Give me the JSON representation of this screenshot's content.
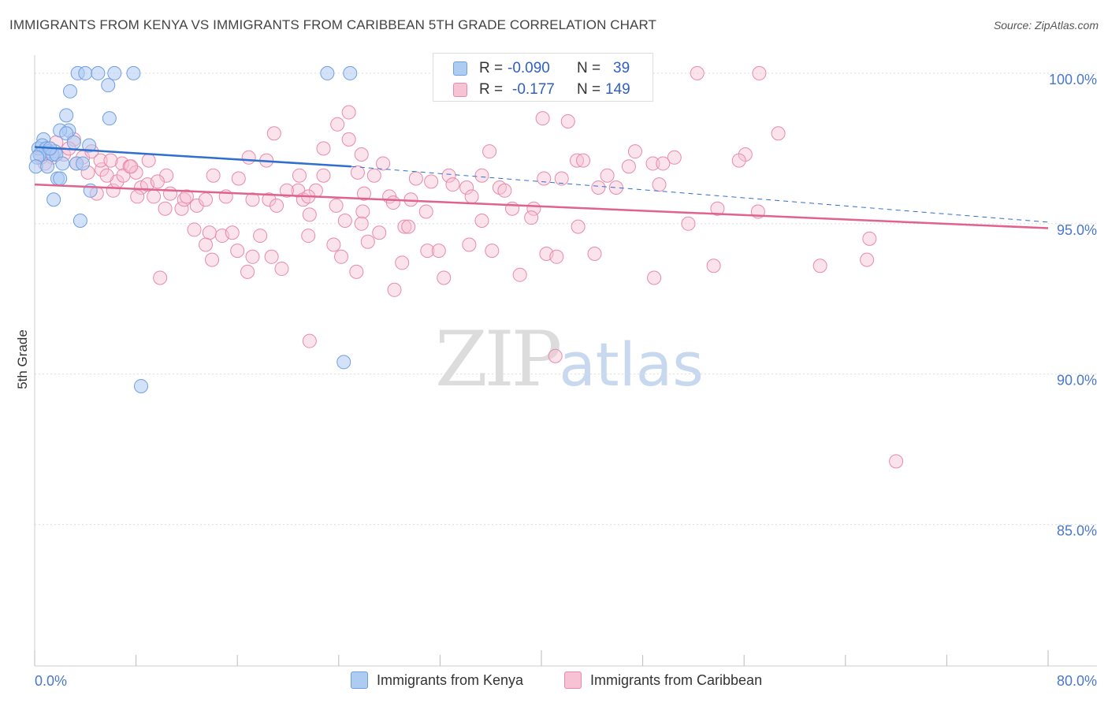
{
  "title": "IMMIGRANTS FROM KENYA VS IMMIGRANTS FROM CARIBBEAN 5TH GRADE CORRELATION CHART",
  "source": "Source: ZipAtlas.com",
  "watermark": {
    "zip": "ZIP",
    "atlas": "atlas"
  },
  "legend": {
    "rows": [
      {
        "r_label": "R =",
        "r_value": "-0.090",
        "n_label": "N =",
        "n_value": "39"
      },
      {
        "r_label": "R =",
        "r_value": "-0.177",
        "n_label": "N =",
        "n_value": "149"
      }
    ],
    "bottom": [
      "Immigrants from Kenya",
      "Immigrants from Caribbean"
    ]
  },
  "colors": {
    "kenya_fill": "#aecbf2",
    "kenya_stroke": "#6f9fe0",
    "kenya_line": "#2e6fcf",
    "carib_fill": "#f7c2d3",
    "carib_stroke": "#e88aaa",
    "carib_line": "#e0628f",
    "tick_text": "#4a78c8",
    "grid": "#dddddd"
  },
  "chart_data": {
    "type": "scatter",
    "title": "IMMIGRANTS FROM KENYA VS IMMIGRANTS FROM CARIBBEAN 5TH GRADE CORRELATION CHART",
    "xlabel": "",
    "ylabel": "5th Grade",
    "xlim": [
      0,
      80
    ],
    "ylim": [
      80.3,
      100.6
    ],
    "x_tick_labels": [
      "0.0%",
      "80.0%"
    ],
    "y_ticks": [
      85,
      90,
      95,
      100
    ],
    "y_tick_labels": [
      "85.0%",
      "90.0%",
      "95.0%",
      "100.0%"
    ],
    "series": [
      {
        "name": "Immigrants from Kenya",
        "r": -0.09,
        "n": 39,
        "trend": {
          "x": [
            0,
            25
          ],
          "y": [
            97.55,
            96.9
          ],
          "dashed_extension": {
            "x": [
              25,
              80
            ],
            "y": [
              96.9,
              95.05
            ]
          }
        },
        "points": [
          [
            3.4,
            100.0
          ],
          [
            4.0,
            100.0
          ],
          [
            5.0,
            100.0
          ],
          [
            6.3,
            100.0
          ],
          [
            7.8,
            100.0
          ],
          [
            23.1,
            100.0
          ],
          [
            24.9,
            100.0
          ],
          [
            2.8,
            99.4
          ],
          [
            5.8,
            99.6
          ],
          [
            2.5,
            98.6
          ],
          [
            5.9,
            98.5
          ],
          [
            2.7,
            98.1
          ],
          [
            2.0,
            98.1
          ],
          [
            2.5,
            98.0
          ],
          [
            0.7,
            97.8
          ],
          [
            3.1,
            97.7
          ],
          [
            4.3,
            97.6
          ],
          [
            0.3,
            97.5
          ],
          [
            0.6,
            97.6
          ],
          [
            0.9,
            97.5
          ],
          [
            1.1,
            97.4
          ],
          [
            1.6,
            97.4
          ],
          [
            0.4,
            97.3
          ],
          [
            1.4,
            97.3
          ],
          [
            0.2,
            97.2
          ],
          [
            1.7,
            97.3
          ],
          [
            3.3,
            97.0
          ],
          [
            3.8,
            97.0
          ],
          [
            2.2,
            97.0
          ],
          [
            0.1,
            96.9
          ],
          [
            1.0,
            96.9
          ],
          [
            1.8,
            96.5
          ],
          [
            2.0,
            96.5
          ],
          [
            4.4,
            96.1
          ],
          [
            1.5,
            95.8
          ],
          [
            3.6,
            95.1
          ],
          [
            8.4,
            89.6
          ],
          [
            24.4,
            90.4
          ],
          [
            1.2,
            97.5
          ]
        ]
      },
      {
        "name": "Immigrants from Caribbean",
        "r": -0.177,
        "n": 149,
        "trend": {
          "x": [
            0,
            80
          ],
          "y": [
            96.3,
            94.85
          ]
        },
        "points": [
          [
            52.3,
            100.0
          ],
          [
            57.2,
            100.0
          ],
          [
            24.8,
            98.7
          ],
          [
            40.1,
            98.5
          ],
          [
            42.1,
            98.4
          ],
          [
            23.9,
            98.3
          ],
          [
            18.9,
            98.0
          ],
          [
            58.7,
            98.0
          ],
          [
            24.8,
            97.8
          ],
          [
            22.8,
            97.5
          ],
          [
            25.8,
            97.3
          ],
          [
            35.9,
            97.4
          ],
          [
            47.4,
            97.4
          ],
          [
            56.1,
            97.3
          ],
          [
            50.5,
            97.2
          ],
          [
            18.3,
            97.1
          ],
          [
            16.9,
            97.2
          ],
          [
            55.6,
            97.1
          ],
          [
            42.8,
            97.1
          ],
          [
            43.3,
            97.1
          ],
          [
            27.5,
            97.0
          ],
          [
            48.8,
            97.0
          ],
          [
            49.6,
            97.0
          ],
          [
            46.9,
            96.9
          ],
          [
            25.5,
            96.7
          ],
          [
            16.1,
            96.5
          ],
          [
            20.9,
            96.6
          ],
          [
            22.8,
            96.6
          ],
          [
            26.8,
            96.6
          ],
          [
            32.7,
            96.6
          ],
          [
            35.3,
            96.6
          ],
          [
            40.2,
            96.5
          ],
          [
            41.6,
            96.5
          ],
          [
            45.2,
            96.6
          ],
          [
            14.1,
            96.6
          ],
          [
            30.1,
            96.5
          ],
          [
            31.3,
            96.4
          ],
          [
            33.0,
            96.3
          ],
          [
            34.1,
            96.2
          ],
          [
            36.7,
            96.2
          ],
          [
            37.1,
            96.1
          ],
          [
            44.5,
            96.2
          ],
          [
            45.9,
            96.2
          ],
          [
            49.3,
            96.3
          ],
          [
            26.0,
            96.0
          ],
          [
            20.8,
            96.1
          ],
          [
            22.2,
            96.1
          ],
          [
            28.0,
            95.9
          ],
          [
            29.7,
            95.8
          ],
          [
            15.1,
            95.9
          ],
          [
            17.2,
            95.8
          ],
          [
            18.5,
            95.8
          ],
          [
            19.1,
            95.6
          ],
          [
            21.2,
            95.8
          ],
          [
            23.8,
            95.6
          ],
          [
            25.9,
            95.4
          ],
          [
            37.7,
            95.5
          ],
          [
            39.4,
            95.5
          ],
          [
            53.9,
            95.5
          ],
          [
            57.1,
            95.4
          ],
          [
            21.7,
            95.3
          ],
          [
            24.5,
            95.1
          ],
          [
            25.8,
            95.0
          ],
          [
            29.2,
            94.9
          ],
          [
            29.5,
            94.9
          ],
          [
            35.3,
            95.1
          ],
          [
            39.2,
            95.2
          ],
          [
            51.6,
            95.0
          ],
          [
            42.9,
            94.9
          ],
          [
            13.8,
            94.7
          ],
          [
            17.8,
            94.6
          ],
          [
            21.6,
            94.6
          ],
          [
            26.3,
            94.4
          ],
          [
            27.2,
            94.7
          ],
          [
            31.0,
            94.1
          ],
          [
            31.9,
            94.1
          ],
          [
            34.3,
            94.3
          ],
          [
            36.1,
            94.1
          ],
          [
            40.4,
            94.0
          ],
          [
            41.2,
            93.9
          ],
          [
            53.6,
            93.6
          ],
          [
            65.9,
            94.5
          ],
          [
            65.7,
            93.8
          ],
          [
            24.2,
            93.9
          ],
          [
            25.4,
            93.4
          ],
          [
            29.0,
            93.7
          ],
          [
            32.3,
            93.2
          ],
          [
            38.3,
            93.3
          ],
          [
            48.9,
            93.2
          ],
          [
            62.0,
            93.6
          ],
          [
            28.4,
            92.8
          ],
          [
            6.9,
            97.0
          ],
          [
            7.5,
            96.9
          ],
          [
            8.0,
            96.7
          ],
          [
            9.0,
            97.1
          ],
          [
            10.4,
            96.6
          ],
          [
            10.7,
            96.0
          ],
          [
            11.6,
            95.5
          ],
          [
            11.8,
            95.8
          ],
          [
            12.8,
            95.6
          ],
          [
            13.5,
            95.8
          ],
          [
            14.8,
            94.6
          ],
          [
            15.6,
            94.7
          ],
          [
            14.0,
            93.8
          ],
          [
            16.0,
            94.1
          ],
          [
            17.2,
            93.9
          ],
          [
            18.7,
            93.9
          ],
          [
            16.8,
            93.4
          ],
          [
            19.5,
            93.5
          ],
          [
            9.9,
            93.2
          ],
          [
            6.2,
            96.1
          ],
          [
            6.5,
            96.4
          ],
          [
            8.4,
            96.2
          ],
          [
            9.4,
            95.9
          ],
          [
            10.3,
            95.5
          ],
          [
            8.9,
            96.3
          ],
          [
            7.0,
            96.6
          ],
          [
            3.1,
            97.8
          ],
          [
            3.8,
            97.2
          ],
          [
            4.5,
            97.4
          ],
          [
            5.3,
            96.8
          ],
          [
            5.7,
            96.6
          ],
          [
            4.9,
            96.0
          ],
          [
            5.2,
            97.1
          ],
          [
            4.2,
            96.7
          ],
          [
            1.7,
            97.7
          ],
          [
            1.4,
            97.2
          ],
          [
            2.3,
            97.3
          ],
          [
            0.8,
            97.0
          ],
          [
            0.5,
            97.2
          ],
          [
            2.7,
            97.5
          ],
          [
            3.3,
            97.0
          ],
          [
            6.0,
            97.1
          ],
          [
            8.1,
            95.9
          ],
          [
            12.0,
            95.9
          ],
          [
            13.5,
            94.3
          ],
          [
            21.6,
            95.9
          ],
          [
            28.3,
            95.7
          ],
          [
            21.7,
            91.1
          ],
          [
            41.1,
            90.6
          ],
          [
            68.0,
            87.1
          ],
          [
            7.6,
            96.9
          ],
          [
            9.7,
            96.4
          ],
          [
            19.9,
            96.1
          ],
          [
            30.9,
            95.4
          ],
          [
            34.5,
            95.9
          ],
          [
            44.2,
            94.0
          ],
          [
            12.6,
            94.8
          ],
          [
            23.6,
            94.3
          ]
        ]
      }
    ]
  }
}
